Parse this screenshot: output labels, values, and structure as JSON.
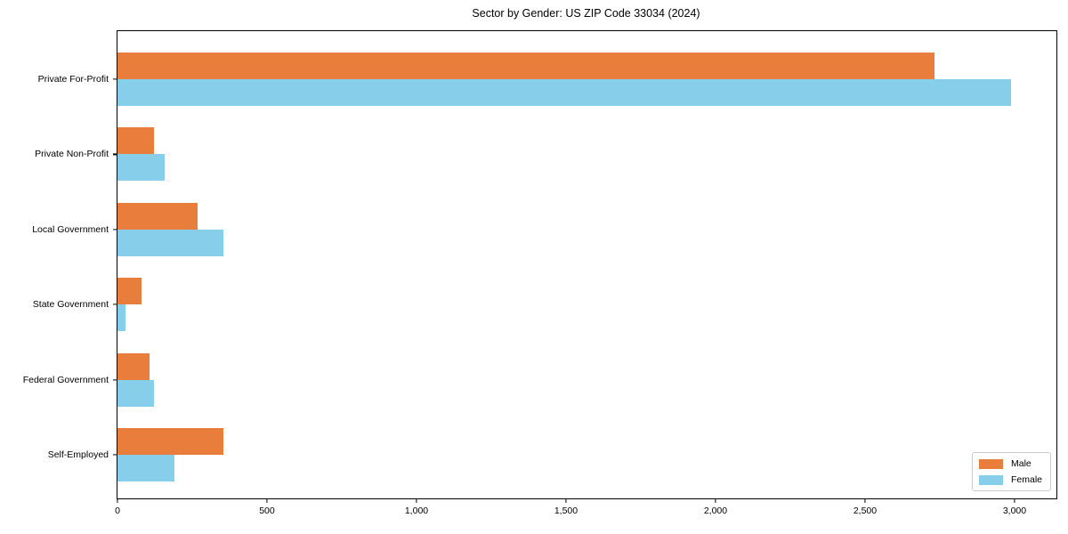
{
  "chart_data": {
    "type": "bar",
    "orientation": "horizontal",
    "title": "Sector by Gender: US ZIP Code 33034 (2024)",
    "xlabel": "",
    "ylabel": "",
    "categories": [
      "Private For-Profit",
      "Private Non-Profit",
      "Local Government",
      "State Government",
      "Federal Government",
      "Self-Employed"
    ],
    "series": [
      {
        "name": "Male",
        "color": "#e87d3c",
        "values": [
          2733,
          122,
          268,
          80,
          107,
          354
        ]
      },
      {
        "name": "Female",
        "color": "#87ceeb",
        "values": [
          2988,
          158,
          354,
          27,
          122,
          190
        ]
      }
    ],
    "xlim": [
      0,
      3140
    ],
    "xticks": {
      "values": [
        0,
        500,
        1000,
        1500,
        2000,
        2500,
        3000
      ],
      "labels": [
        "0",
        "500",
        "1,000",
        "1,500",
        "2,000",
        "2,500",
        "3,000"
      ]
    },
    "grid": false,
    "legend": {
      "position": "lower right",
      "entries": [
        "Male",
        "Female"
      ]
    },
    "colors": {
      "background": "#ffffff",
      "axis": "#000000",
      "legend_border": "#cccccc"
    }
  }
}
